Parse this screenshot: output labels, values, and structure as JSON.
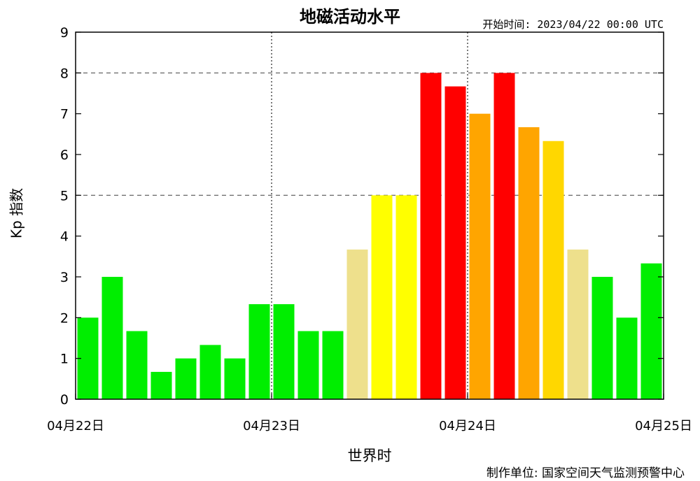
{
  "chart_data": {
    "type": "bar",
    "title": "地磁活动水平",
    "start_time": "开始时间: 2023/04/22 00:00 UTC",
    "xlabel": "世界时",
    "ylabel": "Kp 指数",
    "credit": "制作单位: 国家空间天气监测预警中心",
    "ylim": [
      0,
      9
    ],
    "ticks_y": [
      "0",
      "1",
      "2",
      "3",
      "4",
      "5",
      "6",
      "7",
      "8",
      "9"
    ],
    "x_tick_labels": [
      "04月22日",
      "04月23日",
      "04月24日",
      "04月25日"
    ],
    "dashed_levels": [
      5,
      8
    ],
    "day_separators": [
      8,
      16
    ],
    "values": [
      2,
      3,
      1.67,
      0.67,
      1,
      1.33,
      1,
      2.33,
      2.33,
      1.67,
      1.67,
      3.67,
      5,
      5,
      8,
      7.67,
      7,
      8,
      6.67,
      6.33,
      3.67,
      3,
      2,
      3.33
    ],
    "colors": {
      "green": "#00ee00",
      "khaki": "#eee08c",
      "yellow": "#ffff00",
      "gold": "#ffd700",
      "orange": "#ffa500",
      "red": "#ff0000"
    },
    "bar_colors": [
      "green",
      "green",
      "green",
      "green",
      "green",
      "green",
      "green",
      "green",
      "green",
      "green",
      "green",
      "khaki",
      "yellow",
      "yellow",
      "red",
      "red",
      "orange",
      "red",
      "orange",
      "gold",
      "khaki",
      "green",
      "green",
      "green"
    ],
    "grid": "dashed lines at Kp 5 and 8; dotted vertical day separators"
  }
}
